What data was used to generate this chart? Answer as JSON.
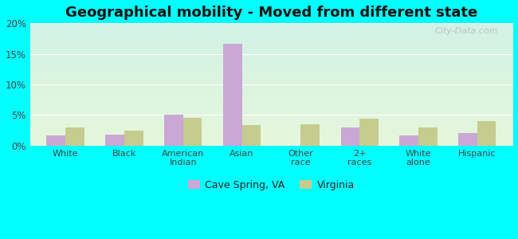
{
  "title": "Geographical mobility - Moved from different state",
  "categories": [
    "White",
    "Black",
    "American\nIndian",
    "Asian",
    "Other\nrace",
    "2+\nraces",
    "White\nalone",
    "Hispanic"
  ],
  "cave_spring": [
    1.6,
    1.8,
    5.0,
    16.6,
    0.0,
    2.9,
    1.6,
    2.1
  ],
  "virginia": [
    3.0,
    2.4,
    4.5,
    3.4,
    3.5,
    4.4,
    2.9,
    4.0
  ],
  "cave_spring_color": "#c9a8d4",
  "virginia_color": "#c5cc8e",
  "ylim": [
    0,
    20
  ],
  "yticks": [
    0,
    5,
    10,
    15,
    20
  ],
  "ytick_labels": [
    "0%",
    "5%",
    "10%",
    "15%",
    "20%"
  ],
  "legend_labels": [
    "Cave Spring, VA",
    "Virginia"
  ],
  "background_outer": "#00ffff",
  "watermark": "City-Data.com",
  "bar_width": 0.32,
  "title_fontsize": 13
}
